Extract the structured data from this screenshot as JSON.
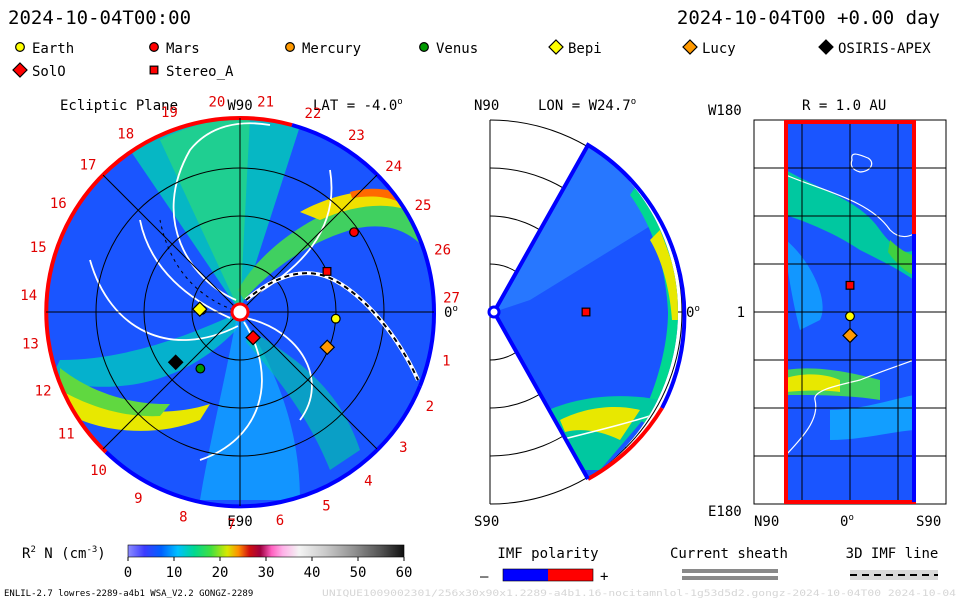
{
  "header": {
    "date_left": "2024-10-04T00:00",
    "date_right": "2024-10-04T00 +0.00 day"
  },
  "legend": {
    "items": [
      {
        "name": "Earth",
        "marker": "circle",
        "color": "#ffff00"
      },
      {
        "name": "Mars",
        "marker": "circle",
        "color": "#ff0000"
      },
      {
        "name": "Mercury",
        "marker": "circle",
        "color": "#ff9900"
      },
      {
        "name": "Venus",
        "marker": "circle",
        "color": "#009900"
      },
      {
        "name": "Bepi",
        "marker": "diamond",
        "color": "#ffff00"
      },
      {
        "name": "Lucy",
        "marker": "diamond",
        "color": "#ff9900"
      },
      {
        "name": "OSIRIS-APEX",
        "marker": "diamond",
        "color": "#000000"
      },
      {
        "name": "SolO",
        "marker": "diamond",
        "color": "#ff0000"
      },
      {
        "name": "Stereo_A",
        "marker": "square",
        "color": "#ff0000"
      }
    ]
  },
  "chart_data": [
    {
      "type": "heatmap",
      "panel": "ecliptic",
      "title": "Ecliptic Plane",
      "lat_label": "LAT = -4.0",
      "lat_degree": "o",
      "top_label": "W90",
      "bottom_label": "E90",
      "right_label": "0",
      "right_degree": "o",
      "clock_labels": [
        "1",
        "2",
        "3",
        "4",
        "5",
        "6",
        "7",
        "8",
        "9",
        "10",
        "11",
        "12",
        "13",
        "14",
        "15",
        "16",
        "17",
        "18",
        "19",
        "20",
        "21",
        "22",
        "23",
        "24",
        "25",
        "26",
        "27"
      ],
      "polarity_boundary": "1-2 toward, 2-10 away, 10-22 toward, 22-1 away",
      "objects": [
        {
          "name": "Earth",
          "r_au": 1.0,
          "lon_deg": -4
        },
        {
          "name": "Mars",
          "r_au": 1.45,
          "lon_deg": 35
        },
        {
          "name": "Mercury",
          "r_au": 0.4,
          "lon_deg": 177
        },
        {
          "name": "Venus",
          "r_au": 0.72,
          "lon_deg": 235
        },
        {
          "name": "Bepi",
          "r_au": 0.42,
          "lon_deg": 176
        },
        {
          "name": "Lucy",
          "r_au": 0.98,
          "lon_deg": -22
        },
        {
          "name": "OSIRIS-APEX",
          "r_au": 0.85,
          "lon_deg": 218
        },
        {
          "name": "SolO",
          "r_au": 0.3,
          "lon_deg": 297
        },
        {
          "name": "Stereo_A",
          "r_au": 1.0,
          "lon_deg": 25
        }
      ]
    },
    {
      "type": "heatmap",
      "panel": "meridional",
      "lon_label": "LON = W24.7",
      "lon_degree": "o",
      "top_label": "N90",
      "bottom_label": "S90",
      "right_label": "0",
      "right_degree": "o",
      "objects": [
        {
          "name": "Stereo_A",
          "r_au": 1.0,
          "lat_deg": 0
        }
      ]
    },
    {
      "type": "heatmap",
      "panel": "sphere",
      "r_label": "R = 1.0 AU",
      "top_left": "W180",
      "mid_left": "1",
      "bottom_left": "E180",
      "x_left": "N90",
      "x_mid": "0",
      "x_mid_degree": "o",
      "x_right": "S90",
      "objects": [
        {
          "name": "Stereo_A",
          "lat_deg": 0,
          "lon_deg": 25
        },
        {
          "name": "Earth",
          "lat_deg": 0,
          "lon_deg": -4
        },
        {
          "name": "Lucy",
          "lat_deg": 0,
          "lon_deg": -22
        }
      ]
    }
  ],
  "colorbar": {
    "label_prefix": "R",
    "label_exp": "2",
    "label_rest": " N (cm",
    "label_unit_exp": "-3",
    "label_close": ")",
    "ticks": [
      "0",
      "10",
      "20",
      "30",
      "40",
      "50",
      "60"
    ],
    "min": 0,
    "max": 60
  },
  "imf_polarity": {
    "label": "IMF polarity",
    "minus": "–",
    "plus": "+"
  },
  "current_sheath": {
    "label": "Current sheath"
  },
  "imf_line": {
    "label": "3D IMF line"
  },
  "footer": {
    "left": "ENLIL-2.7 lowres-2289-a4b1 WSA_V2.2 GONGZ-2289",
    "right": "UNIQUE1009002301/256x30x90x1.2289-a4b1.16-nocitamnlol-1g53d5d2.gongz-2024-10-04T00   2024-10-04"
  },
  "colors": {
    "toward": "#0000ff",
    "away": "#ff0000"
  }
}
